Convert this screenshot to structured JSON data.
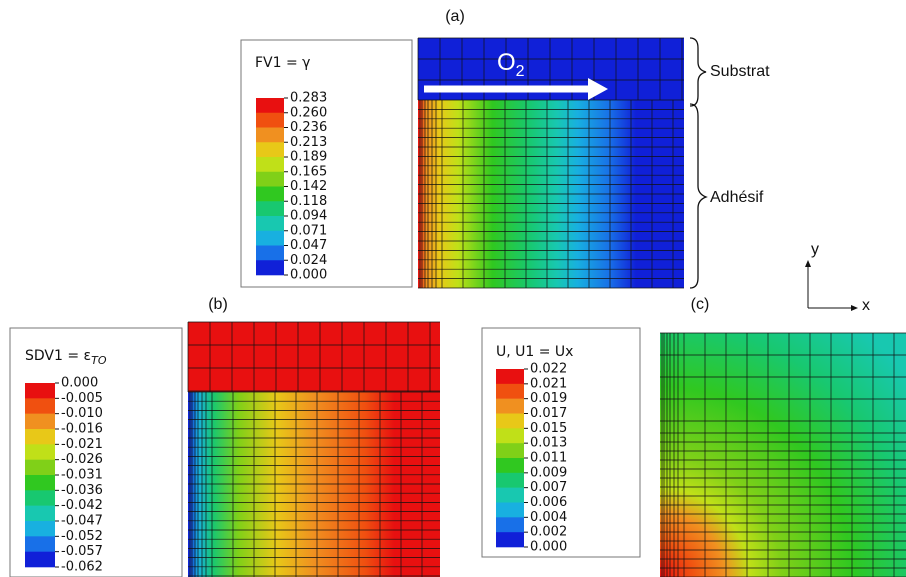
{
  "arrow_label": "O",
  "arrow_label_subscript": "2",
  "annotations": {
    "substrate": "Substrat",
    "adhesive": "Adhésif",
    "y_axis": "y",
    "x_axis": "x"
  },
  "colormap": [
    "#e81010",
    "#f05010",
    "#f09020",
    "#e8c818",
    "#c0e018",
    "#80d018",
    "#30c820",
    "#18c870",
    "#18c8b0",
    "#18b0e0",
    "#1870e8",
    "#1020d8"
  ],
  "panels": [
    {
      "label": "(a)",
      "legend_title": "FV1 = γ",
      "legend_values": [
        "0.283",
        "0.260",
        "0.236",
        "0.213",
        "0.189",
        "0.165",
        "0.142",
        "0.118",
        "0.094",
        "0.071",
        "0.047",
        "0.024",
        "0.000"
      ]
    },
    {
      "label": "(b)",
      "legend_title": "SDV1 = ε",
      "legend_title_subscript": "TO",
      "legend_values": [
        "0.000",
        "-0.005",
        "-0.010",
        "-0.016",
        "-0.021",
        "-0.026",
        "-0.031",
        "-0.036",
        "-0.042",
        "-0.047",
        "-0.052",
        "-0.057",
        "-0.062"
      ]
    },
    {
      "label": "(c)",
      "legend_title": "U, U1 = Ux",
      "legend_values": [
        "0.022",
        "0.021",
        "0.019",
        "0.017",
        "0.015",
        "0.013",
        "0.011",
        "0.009",
        "0.007",
        "0.006",
        "0.004",
        "0.002",
        "0.000"
      ]
    }
  ]
}
